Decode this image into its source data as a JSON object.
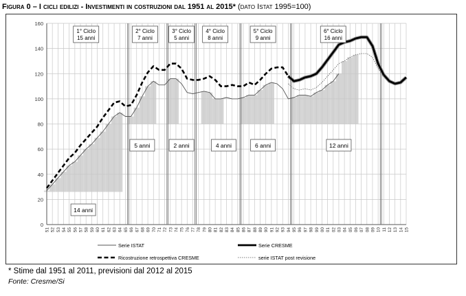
{
  "figure": {
    "label": "Figura 0 – I cicli edilizi - Investimenti in costruzioni dal 1951 al 2015*",
    "paren": "(dato Istat 1995=100)",
    "note": "* Stime dal 1951 al 2011, previsioni dal 2012 al 2015",
    "source": "Fonte: Cresme/Si"
  },
  "chart_data": {
    "type": "line",
    "title": "I cicli edilizi - Investimenti in costruzioni dal 1951 al 2015",
    "ylim": [
      0,
      160
    ],
    "y_ticks": [
      0,
      20,
      40,
      60,
      80,
      100,
      120,
      140,
      160
    ],
    "x_ticks": [
      "51",
      "52",
      "53",
      "54",
      "55",
      "56",
      "57",
      "58",
      "59",
      "60",
      "61",
      "62",
      "63",
      "64",
      "65",
      "66",
      "67",
      "68",
      "69",
      "70",
      "71",
      "72",
      "73",
      "74",
      "75",
      "76",
      "77",
      "78",
      "79",
      "80",
      "81",
      "82",
      "83",
      "84",
      "85",
      "86",
      "87",
      "88",
      "89",
      "90",
      "91",
      "92",
      "93",
      "94",
      "95",
      "96",
      "97",
      "98",
      "99",
      "00",
      "01",
      "02",
      "03",
      "04",
      "05",
      "06",
      "07",
      "08",
      "09",
      "10",
      "11",
      "12",
      "13",
      "14",
      "15"
    ],
    "grid": true,
    "cycles": [
      {
        "label": "1° Ciclo",
        "duration": "15 anni"
      },
      {
        "label": "2° Ciclo",
        "duration": "7 anni"
      },
      {
        "label": "3° Ciclo",
        "duration": "5 anni"
      },
      {
        "label": "4° Ciclo",
        "duration": "8 anni"
      },
      {
        "label": "5° Ciclo",
        "duration": "9 anni"
      },
      {
        "label": "6° Ciclo",
        "duration": "16 anni"
      }
    ],
    "phases": [
      {
        "label": "14 anni",
        "x_start": 1951,
        "x_end": 1964
      },
      {
        "label": "5 anni",
        "x_start": 1966,
        "x_end": 1970
      },
      {
        "label": "2 anni",
        "x_start": 1973,
        "x_end": 1974
      },
      {
        "label": "4 anni",
        "x_start": 1979,
        "x_end": 1982
      },
      {
        "label": "6 anni",
        "x_start": 1986,
        "x_end": 1991
      },
      {
        "label": "12 anni",
        "x_start": 1995,
        "x_end": 2006
      }
    ],
    "cycle_boundaries": [
      1965.5,
      1972.5,
      1977.5,
      1985.5,
      1994.5,
      2010.5
    ],
    "legend": [
      "Serie ISTAT",
      "Serie CRESME",
      "Ricostruzione retrospettiva CRESME",
      "serie ISTAT post revisione"
    ],
    "series": [
      {
        "name": "Ricostruzione retrospettiva CRESME",
        "x": [
          1951,
          1952,
          1953,
          1954,
          1955,
          1956,
          1957,
          1958,
          1959,
          1960,
          1961,
          1962,
          1963,
          1964,
          1965,
          1966,
          1967,
          1968,
          1969,
          1970,
          1971,
          1972,
          1973,
          1974,
          1975,
          1976,
          1977,
          1978,
          1979,
          1980,
          1981,
          1982,
          1983,
          1984,
          1985,
          1986,
          1987,
          1988,
          1989,
          1990,
          1991,
          1992,
          1993,
          1994
        ],
        "values": [
          29,
          35,
          41,
          47,
          53,
          57,
          63,
          68,
          73,
          78,
          85,
          91,
          97,
          98,
          94,
          95,
          103,
          113,
          121,
          126,
          123,
          123,
          128,
          128,
          124,
          116,
          115,
          115,
          116,
          118,
          115,
          110,
          110,
          111,
          110,
          110,
          113,
          111,
          115,
          120,
          124,
          125,
          125,
          118
        ]
      },
      {
        "name": "Serie CRESME",
        "x": [
          1994,
          1995,
          1996,
          1997,
          1998,
          1999,
          2000,
          2001,
          2002,
          2003,
          2004,
          2005,
          2006,
          2007,
          2008,
          2009,
          2010,
          2011,
          2012,
          2013,
          2014,
          2015
        ],
        "values": [
          118,
          114,
          115,
          117,
          118,
          120,
          125,
          131,
          137,
          143,
          145,
          146,
          148,
          149,
          149,
          142,
          128,
          119,
          114,
          112,
          113,
          117
        ]
      },
      {
        "name": "Serie ISTAT",
        "x": [
          1951,
          1952,
          1953,
          1954,
          1955,
          1956,
          1957,
          1958,
          1959,
          1960,
          1961,
          1962,
          1963,
          1964,
          1965,
          1966,
          1967,
          1968,
          1969,
          1970,
          1971,
          1972,
          1973,
          1974,
          1975,
          1976,
          1977,
          1978,
          1979,
          1980,
          1981,
          1982,
          1983,
          1984,
          1985,
          1986,
          1987,
          1988,
          1989,
          1990,
          1991,
          1992,
          1993,
          1994,
          1995,
          1996,
          1997,
          1998,
          1999,
          2000,
          2001,
          2002,
          2003
        ],
        "values": [
          27,
          32,
          37,
          42,
          47,
          50,
          55,
          60,
          64,
          69,
          74,
          80,
          86,
          89,
          86,
          86,
          93,
          102,
          110,
          114,
          111,
          111,
          116,
          116,
          112,
          105,
          104,
          105,
          106,
          105,
          100,
          100,
          101,
          100,
          100,
          101,
          103,
          103,
          107,
          111,
          113,
          112,
          108,
          100,
          101,
          103,
          103,
          102,
          105,
          107,
          111,
          114,
          120
        ]
      },
      {
        "name": "serie ISTAT post revisione",
        "x": [
          1994,
          1995,
          1996,
          1997,
          1998,
          1999,
          2000,
          2001,
          2002,
          2003,
          2004,
          2005,
          2006,
          2007,
          2008,
          2009,
          2010,
          2011
        ],
        "values": [
          112,
          108,
          107,
          108,
          107,
          109,
          113,
          118,
          123,
          128,
          130,
          133,
          135,
          136,
          136,
          133,
          124,
          118
        ]
      }
    ]
  }
}
